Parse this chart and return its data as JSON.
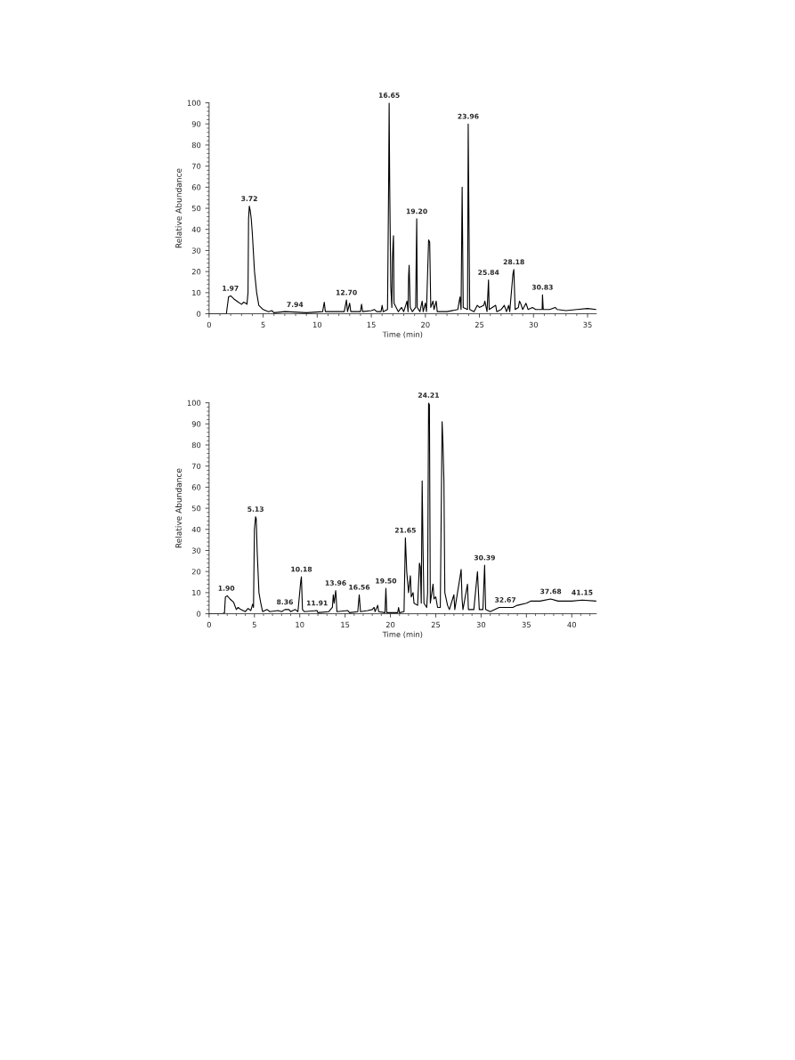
{
  "chart_data": [
    {
      "type": "line",
      "xlabel": "Time (min)",
      "ylabel": "Relative Abundance",
      "xlim": [
        0,
        35.8
      ],
      "xticks": [
        0,
        5,
        10,
        15,
        20,
        25,
        30,
        35
      ],
      "ylim": [
        0,
        100
      ],
      "yticks": [
        0,
        10,
        20,
        30,
        40,
        50,
        60,
        70,
        80,
        90,
        100
      ],
      "series": [
        {
          "color": "#000000",
          "x": [
            0,
            1.5,
            1.6,
            1.8,
            2.0,
            2.3,
            2.7,
            3.0,
            3.2,
            3.4,
            3.5,
            3.6,
            3.65,
            3.72,
            3.8,
            3.9,
            4.0,
            4.2,
            4.4,
            4.6,
            5.0,
            5.5,
            5.8,
            6.0,
            7.0,
            7.94,
            9.0,
            10.5,
            10.65,
            10.75,
            12.5,
            12.7,
            12.8,
            13.0,
            13.1,
            14.0,
            14.1,
            14.2,
            15.0,
            15.3,
            15.5,
            15.9,
            16.0,
            16.1,
            16.5,
            16.6,
            16.65,
            16.7,
            16.8,
            16.9,
            16.95,
            17.0,
            17.05,
            17.1,
            17.5,
            17.8,
            18.0,
            18.3,
            18.4,
            18.45,
            18.5,
            18.6,
            18.8,
            19.1,
            19.15,
            19.2,
            19.25,
            19.5,
            19.7,
            19.8,
            20.0,
            20.1,
            20.3,
            20.4,
            20.5,
            20.7,
            20.8,
            21.0,
            21.1,
            22.0,
            23.0,
            23.2,
            23.3,
            23.4,
            23.5,
            23.9,
            23.96,
            24.0,
            24.1,
            24.5,
            24.8,
            25.0,
            25.4,
            25.5,
            25.7,
            25.84,
            25.9,
            26.5,
            26.6,
            27.0,
            27.3,
            27.5,
            27.7,
            27.8,
            28.1,
            28.18,
            28.3,
            28.6,
            28.7,
            28.8,
            29.0,
            29.3,
            29.5,
            29.9,
            30.2,
            30.8,
            30.83,
            30.9,
            31.5,
            32.0,
            32.2,
            33.0,
            34.0,
            35.0,
            35.8
          ],
          "values": [
            0,
            0,
            0,
            8,
            8.5,
            7,
            5.5,
            4.5,
            5.5,
            5,
            4.5,
            10,
            45,
            51,
            49,
            45,
            38,
            20,
            10,
            4,
            2,
            1,
            1.5,
            0.5,
            1,
            0.8,
            0.5,
            1,
            5.5,
            1,
            1,
            6.5,
            1,
            5,
            1,
            1,
            4.5,
            1,
            1.5,
            2,
            1,
            1,
            4,
            1,
            2,
            60,
            100,
            62,
            13,
            3,
            25,
            32,
            37,
            5,
            1,
            3,
            1,
            6,
            1,
            18,
            23,
            3,
            1,
            3,
            25,
            45,
            3,
            1,
            6,
            1,
            5,
            1,
            35,
            34,
            3,
            6,
            2,
            6,
            1,
            1,
            2,
            8,
            2,
            60,
            3,
            2,
            90,
            63,
            2,
            1,
            4,
            3,
            4,
            6,
            1,
            16,
            2,
            4,
            1,
            2,
            4,
            1,
            4,
            1,
            19,
            21,
            2,
            3,
            6,
            5,
            2,
            5,
            2,
            3,
            2,
            2,
            9,
            2,
            2,
            3,
            2,
            1.5,
            2,
            2.5,
            2
          ]
        }
      ],
      "annotations": [
        {
          "text": "1.97",
          "x": 1.97,
          "y": 8.5
        },
        {
          "text": "3.72",
          "x": 3.72,
          "y": 51
        },
        {
          "text": "7.94",
          "x": 7.94,
          "y": 0.8
        },
        {
          "text": "12.70",
          "x": 12.7,
          "y": 6.5
        },
        {
          "text": "16.65",
          "x": 16.65,
          "y": 100
        },
        {
          "text": "19.20",
          "x": 19.2,
          "y": 45
        },
        {
          "text": "23.96",
          "x": 23.96,
          "y": 90
        },
        {
          "text": "25.84",
          "x": 25.84,
          "y": 16
        },
        {
          "text": "28.18",
          "x": 28.18,
          "y": 21
        },
        {
          "text": "30.83",
          "x": 30.83,
          "y": 9
        }
      ]
    },
    {
      "type": "line",
      "xlabel": "Time (min)",
      "ylabel": "Relative Abundance",
      "xlim": [
        0,
        42.7
      ],
      "xticks": [
        0,
        5,
        10,
        15,
        20,
        25,
        30,
        35,
        40
      ],
      "ylim": [
        0,
        100
      ],
      "yticks": [
        0,
        10,
        20,
        30,
        40,
        50,
        60,
        70,
        80,
        90,
        100
      ],
      "series": [
        {
          "color": "#000000",
          "x": [
            0,
            1.5,
            1.7,
            1.8,
            2.0,
            2.3,
            2.7,
            3.0,
            3.2,
            3.5,
            4.0,
            4.3,
            4.6,
            4.8,
            4.9,
            5.0,
            5.13,
            5.2,
            5.3,
            5.5,
            5.7,
            5.9,
            6.4,
            6.7,
            7.6,
            8.0,
            8.36,
            8.8,
            9.0,
            9.5,
            9.8,
            10.1,
            10.18,
            10.3,
            10.5,
            11.91,
            12.0,
            13.2,
            13.6,
            13.7,
            13.8,
            13.96,
            14.0,
            14.1,
            15.3,
            15.5,
            16.4,
            16.56,
            16.7,
            17.5,
            18.0,
            18.2,
            18.3,
            18.6,
            18.7,
            19.4,
            19.5,
            19.6,
            20.8,
            20.9,
            21.0,
            21.5,
            21.65,
            21.8,
            22.0,
            22.2,
            22.3,
            22.5,
            22.6,
            23.0,
            23.2,
            23.3,
            23.4,
            23.5,
            23.6,
            23.7,
            24.0,
            24.1,
            24.21,
            24.3,
            24.4,
            24.7,
            24.8,
            25.0,
            25.2,
            25.5,
            25.7,
            25.8,
            25.9,
            26.0,
            26.3,
            26.5,
            27.0,
            27.1,
            27.7,
            27.8,
            27.9,
            28.0,
            28.5,
            28.6,
            29.2,
            29.6,
            29.8,
            30.2,
            30.39,
            30.5,
            31.0,
            32.0,
            32.67,
            33.0,
            33.5,
            34.0,
            35.0,
            35.5,
            36.5,
            37.68,
            38.5,
            40.0,
            41.15,
            42.7
          ],
          "values": [
            0,
            0,
            0.5,
            8,
            8.5,
            7,
            5.5,
            2,
            3,
            2,
            1,
            2.5,
            1.5,
            4.5,
            3,
            40,
            46,
            45,
            30,
            10,
            5,
            1,
            2,
            1,
            1.5,
            1,
            2,
            2,
            1,
            2,
            1,
            15,
            17.5,
            2,
            1,
            1.5,
            0.5,
            1,
            3,
            9,
            5,
            11,
            9,
            1,
            1.5,
            0.5,
            1,
            9,
            1,
            1.5,
            2,
            3,
            1,
            4,
            1,
            0.5,
            12,
            0.5,
            0.5,
            3,
            0.5,
            1,
            36,
            20,
            10,
            18,
            8,
            10,
            5,
            4,
            24,
            22,
            5,
            63,
            30,
            5,
            3,
            10,
            100,
            99,
            5,
            14,
            7,
            8,
            3,
            3,
            91,
            80,
            63,
            10,
            4,
            2,
            9,
            2,
            18,
            21,
            7,
            2,
            14,
            2,
            2,
            20,
            2,
            2,
            23,
            2,
            1,
            3,
            3,
            3,
            3,
            4,
            5,
            6,
            6,
            7,
            6,
            6,
            6.5,
            6
          ]
        }
      ],
      "annotations": [
        {
          "text": "1.90",
          "x": 1.9,
          "y": 8.5
        },
        {
          "text": "5.13",
          "x": 5.13,
          "y": 46
        },
        {
          "text": "8.36",
          "x": 8.36,
          "y": 2
        },
        {
          "text": "10.18",
          "x": 10.18,
          "y": 17.5
        },
        {
          "text": "11.91",
          "x": 11.91,
          "y": 1.5
        },
        {
          "text": "13.96",
          "x": 13.96,
          "y": 11
        },
        {
          "text": "16.56",
          "x": 16.56,
          "y": 9
        },
        {
          "text": "19.50",
          "x": 19.5,
          "y": 12
        },
        {
          "text": "21.65",
          "x": 21.65,
          "y": 36
        },
        {
          "text": "24.21",
          "x": 24.21,
          "y": 100
        },
        {
          "text": "30.39",
          "x": 30.39,
          "y": 23
        },
        {
          "text": "32.67",
          "x": 32.67,
          "y": 3
        },
        {
          "text": "37.68",
          "x": 37.68,
          "y": 7
        },
        {
          "text": "41.15",
          "x": 41.15,
          "y": 6.5
        }
      ]
    }
  ]
}
